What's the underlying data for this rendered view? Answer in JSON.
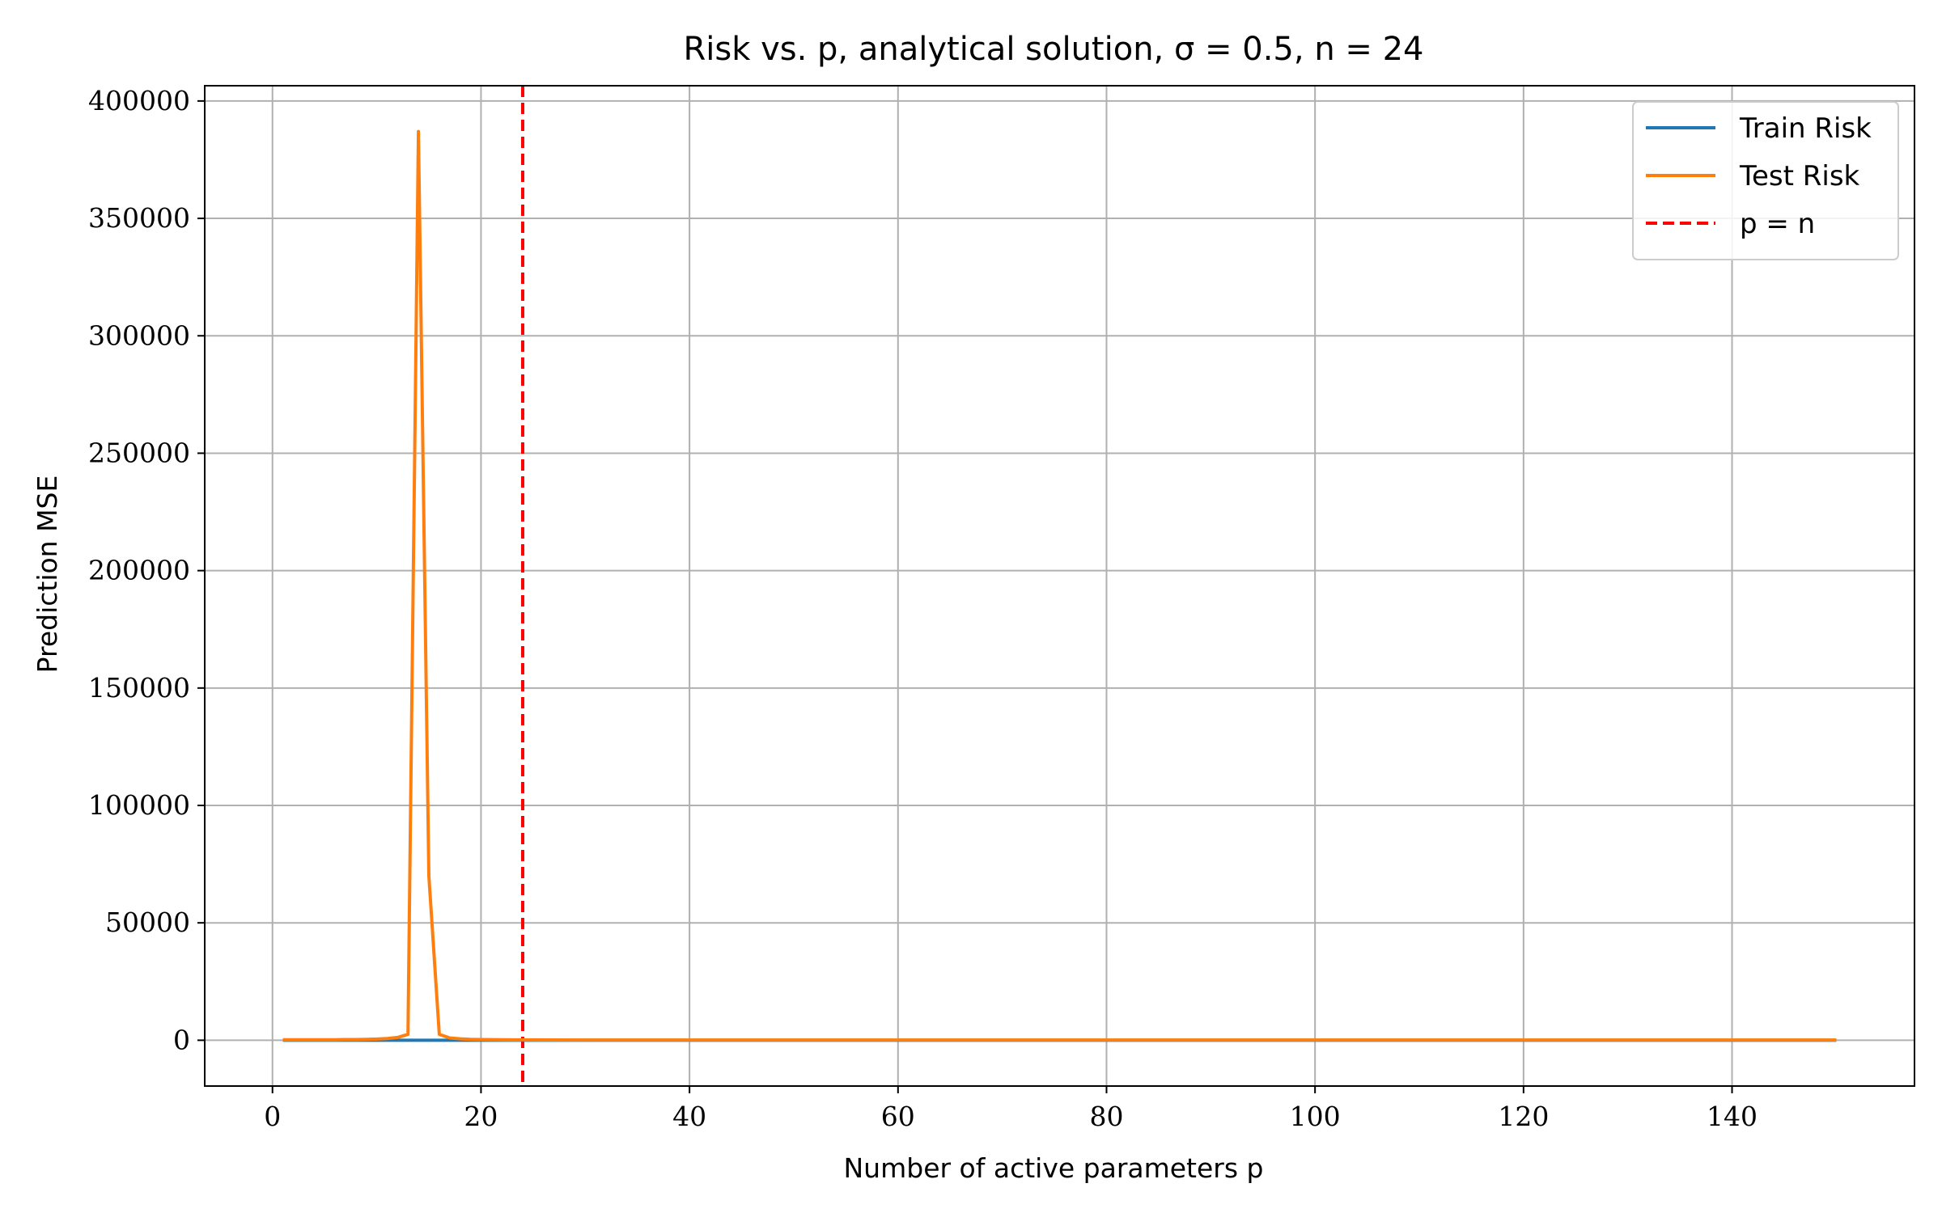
{
  "chart_data": {
    "type": "line",
    "title": "Risk vs. p, analytical solution, σ = 0.5, n = 24",
    "xlabel": "Number of active parameters p",
    "ylabel": "Prediction MSE",
    "xlim": [
      -6.5,
      157.5
    ],
    "ylim": [
      -19500,
      406500
    ],
    "xticks": [
      0,
      20,
      40,
      60,
      80,
      100,
      120,
      140
    ],
    "xtick_labels": [
      "0",
      "20",
      "40",
      "60",
      "80",
      "100",
      "120",
      "140"
    ],
    "yticks": [
      0,
      50000,
      100000,
      150000,
      200000,
      250000,
      300000,
      350000,
      400000
    ],
    "ytick_labels": [
      "0",
      "50000",
      "100000",
      "150000",
      "200000",
      "250000",
      "300000",
      "350000",
      "400000"
    ],
    "grid": true,
    "legend_position": "top-right",
    "series": [
      {
        "name": "Train Risk",
        "color": "#1f77b4",
        "style": "solid",
        "x": [
          1,
          2,
          3,
          4,
          5,
          6,
          7,
          8,
          9,
          10,
          11,
          12,
          13,
          14,
          15,
          16,
          17,
          18,
          19,
          20,
          21,
          22,
          23,
          24,
          150
        ],
        "y": [
          0,
          0,
          0,
          0,
          0,
          0,
          0,
          0,
          0,
          0,
          0,
          0,
          0,
          0,
          0,
          0,
          0,
          0,
          0,
          0,
          0,
          0,
          0,
          0,
          0
        ]
      },
      {
        "name": "Test Risk",
        "color": "#ff7f0e",
        "style": "solid",
        "x": [
          1,
          2,
          3,
          4,
          5,
          6,
          7,
          8,
          9,
          10,
          11,
          12,
          13,
          14,
          15,
          16,
          17,
          18,
          19,
          20,
          22,
          24,
          30,
          40,
          60,
          80,
          100,
          120,
          140,
          150
        ],
        "y": [
          200,
          200,
          200,
          200,
          200,
          200,
          300,
          300,
          400,
          500,
          700,
          1200,
          2500,
          387000,
          70000,
          2500,
          1000,
          600,
          400,
          300,
          200,
          150,
          100,
          100,
          100,
          100,
          100,
          100,
          100,
          100
        ]
      }
    ],
    "vlines": [
      {
        "name": "p = n",
        "x": 24,
        "color": "#ff0000",
        "style": "dashed"
      }
    ]
  }
}
